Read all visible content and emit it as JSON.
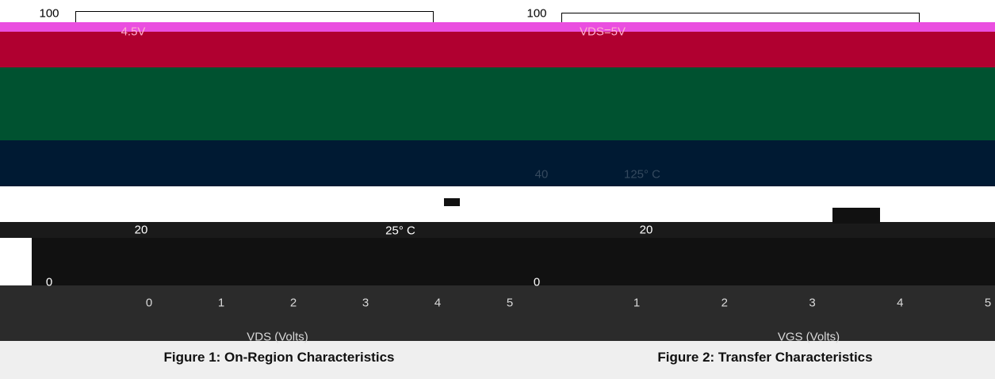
{
  "figures": [
    {
      "y_top": "100",
      "curve_label": "4.5V",
      "y_mid": "20",
      "temp_label": "25° C",
      "y_bottom": "0",
      "x_ticks": [
        "0",
        "1",
        "2",
        "3",
        "4",
        "5"
      ],
      "x_label": "VDS (Volts)",
      "caption": "Figure 1: On-Region Characteristics"
    },
    {
      "y_top": "100",
      "curve_label": "VDS=5V",
      "y_mid2": "40",
      "temp_label": "125° C",
      "y_mid": "20",
      "y_bottom": "0",
      "x_ticks": [
        "1",
        "2",
        "3",
        "4",
        "5"
      ],
      "x_label": "VGS (Volts)",
      "caption": "Figure 2: Transfer Characteristics"
    }
  ]
}
